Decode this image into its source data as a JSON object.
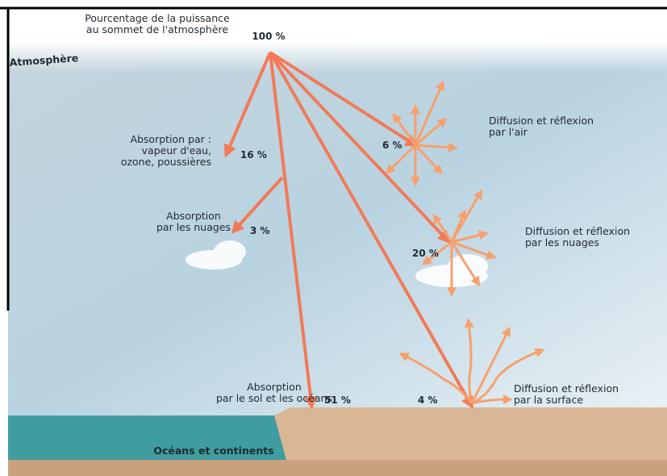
{
  "header": {
    "lines": [
      "Pourcentage de la puissance",
      "au sommet de l'atmosphère"
    ],
    "value": "100 %"
  },
  "atmosphere_label": "Atmosphère",
  "ground_label": "Océans et continents",
  "fluxes": [
    {
      "lines": [
        "Absorption par :",
        "vapeur d'eau,",
        "ozone, poussières"
      ],
      "value": "16 %"
    },
    {
      "lines": [
        "Absorption",
        "par les nuages"
      ],
      "value": "3 %"
    },
    {
      "lines": [
        "Absorption",
        "par le sol et les océans"
      ],
      "value": "51 %"
    },
    {
      "lines": [
        "Diffusion et réflexion",
        "par l'air"
      ],
      "value": "6 %"
    },
    {
      "lines": [
        "Diffusion et réflexion",
        "par les nuages"
      ],
      "value": "20 %"
    },
    {
      "lines": [
        "Diffusion et réflexion",
        "par la surface"
      ],
      "value": "4 %"
    }
  ]
}
